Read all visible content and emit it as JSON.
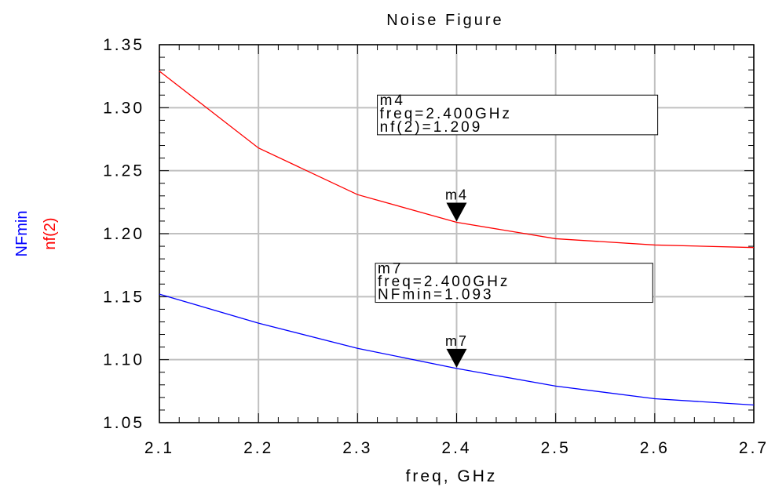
{
  "chart_data": {
    "type": "line",
    "title": "Noise Figure",
    "xlabel": "freq, GHz",
    "ylabels": [
      {
        "text": "NFmin",
        "color": "#0000ff"
      },
      {
        "text": "nf(2)",
        "color": "#ff0000"
      }
    ],
    "xlim": [
      2.1,
      2.7
    ],
    "ylim": [
      1.05,
      1.35
    ],
    "x_ticks": [
      "2.1",
      "2.2",
      "2.3",
      "2.4",
      "2.5",
      "2.6",
      "2.7"
    ],
    "y_ticks": [
      "1.05",
      "1.10",
      "1.15",
      "1.20",
      "1.25",
      "1.30",
      "1.35"
    ],
    "grid": true,
    "x": [
      2.1,
      2.2,
      2.3,
      2.4,
      2.5,
      2.6,
      2.7
    ],
    "series": [
      {
        "name": "nf(2)",
        "color": "#ff0000",
        "values": [
          1.329,
          1.268,
          1.231,
          1.209,
          1.196,
          1.191,
          1.189
        ]
      },
      {
        "name": "NFmin",
        "color": "#0000ff",
        "values": [
          1.152,
          1.129,
          1.109,
          1.093,
          1.079,
          1.069,
          1.064
        ]
      }
    ],
    "markers": [
      {
        "label": "m4",
        "series": 0,
        "x": 2.4,
        "y": 1.209,
        "lines": [
          "m4",
          "freq=2.400GHz",
          "nf(2)=1.209"
        ],
        "box": {
          "x": 2.32,
          "y": 1.31,
          "x2": 2.603,
          "y2": 1.2785
        }
      },
      {
        "label": "m7",
        "series": 1,
        "x": 2.4,
        "y": 1.093,
        "lines": [
          "m7",
          "freq=2.400GHz",
          "NFmin=1.093"
        ],
        "box": {
          "x": 2.318,
          "y": 1.1765,
          "x2": 2.598,
          "y2": 1.1455
        }
      }
    ]
  }
}
